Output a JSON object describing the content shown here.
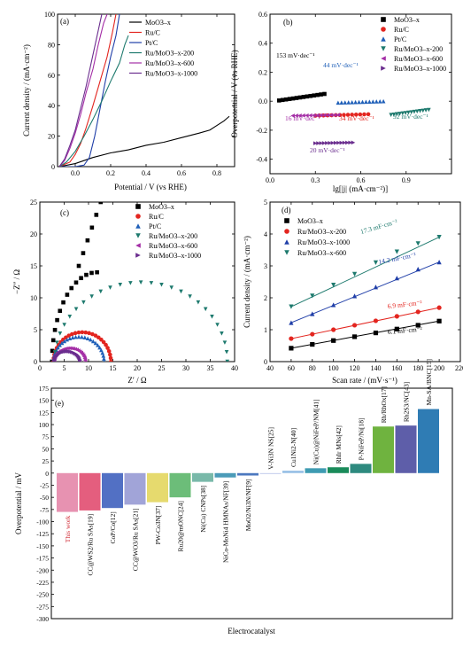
{
  "chart_data": [
    {
      "panel": "(a)",
      "type": "line",
      "xlabel": "Potential / V (vs RHE)",
      "ylabel": "Current density / (mA·cm⁻²)",
      "xlim": [
        -0.1,
        0.9
      ],
      "ylim": [
        0,
        100
      ],
      "xticks": [
        0.0,
        0.2,
        0.4,
        0.6,
        0.8
      ],
      "yticks": [
        0,
        20,
        40,
        60,
        80,
        100
      ],
      "legend_position": "top-right",
      "series": [
        {
          "name": "MoO3-x",
          "color": "#000000",
          "points": [
            [
              -0.09,
              0
            ],
            [
              0.0,
              2
            ],
            [
              0.1,
              6
            ],
            [
              0.2,
              9
            ],
            [
              0.3,
              11
            ],
            [
              0.4,
              14
            ],
            [
              0.5,
              16
            ],
            [
              0.6,
              19
            ],
            [
              0.7,
              22
            ],
            [
              0.76,
              24
            ],
            [
              0.8,
              27
            ],
            [
              0.84,
              30
            ],
            [
              0.87,
              33
            ]
          ]
        },
        {
          "name": "Ru/C",
          "color": "#e3251f",
          "points": [
            [
              -0.09,
              0
            ],
            [
              -0.03,
              3
            ],
            [
              0.0,
              8
            ],
            [
              0.03,
              15
            ],
            [
              0.06,
              25
            ],
            [
              0.1,
              40
            ],
            [
              0.14,
              56
            ],
            [
              0.18,
              72
            ],
            [
              0.21,
              88
            ],
            [
              0.23,
              100
            ]
          ]
        },
        {
          "name": "Pt/C",
          "color": "#1f3ea8",
          "points": [
            [
              -0.09,
              0
            ],
            [
              0.0,
              0
            ],
            [
              0.05,
              1
            ],
            [
              0.08,
              6
            ],
            [
              0.11,
              20
            ],
            [
              0.14,
              38
            ],
            [
              0.17,
              56
            ],
            [
              0.2,
              72
            ],
            [
              0.23,
              86
            ],
            [
              0.25,
              100
            ]
          ]
        },
        {
          "name": "Ru/MoO3-x-200",
          "color": "#1e7a6e",
          "points": [
            [
              -0.09,
              0
            ],
            [
              -0.05,
              3
            ],
            [
              0.0,
              10
            ],
            [
              0.05,
              20
            ],
            [
              0.1,
              31
            ],
            [
              0.15,
              43
            ],
            [
              0.2,
              56
            ],
            [
              0.25,
              68
            ],
            [
              0.28,
              80
            ],
            [
              0.3,
              86
            ]
          ]
        },
        {
          "name": "Ru/MoO3-x-600",
          "color": "#a42ea6",
          "points": [
            [
              -0.09,
              0
            ],
            [
              -0.06,
              4
            ],
            [
              -0.03,
              12
            ],
            [
              0.0,
              22
            ],
            [
              0.03,
              34
            ],
            [
              0.06,
              48
            ],
            [
              0.1,
              64
            ],
            [
              0.13,
              80
            ],
            [
              0.16,
              94
            ],
            [
              0.18,
              100
            ]
          ]
        },
        {
          "name": "Ru/MoO3-x-1000",
          "color": "#6a2d8e",
          "points": [
            [
              -0.09,
              0
            ],
            [
              -0.06,
              5
            ],
            [
              -0.03,
              14
            ],
            [
              0.0,
              24
            ],
            [
              0.03,
              38
            ],
            [
              0.06,
              52
            ],
            [
              0.09,
              68
            ],
            [
              0.12,
              84
            ],
            [
              0.15,
              100
            ]
          ]
        }
      ]
    },
    {
      "panel": "(b)",
      "type": "scatter",
      "xlabel": "lg[|j| (mA·cm⁻²)]",
      "ylabel": "Overpotential / V (vs RHE)",
      "xlim": [
        0,
        1.2
      ],
      "ylim": [
        -0.5,
        0.6
      ],
      "xticks": [
        0.0,
        0.3,
        0.6,
        0.9
      ],
      "yticks": [
        -0.4,
        -0.2,
        0.0,
        0.2,
        0.4,
        0.6
      ],
      "legend_position": "top-right",
      "series": [
        {
          "name": "MoO3-x",
          "color": "#000000",
          "marker": "square",
          "x_range": [
            0.06,
            0.36
          ],
          "y_range": [
            0.005,
            0.05
          ],
          "slope_label": "153 mV·dec⁻¹"
        },
        {
          "name": "Ru/C",
          "color": "#e3251f",
          "marker": "circle",
          "x_range": [
            0.3,
            0.65
          ],
          "y_range": [
            -0.1,
            -0.09
          ],
          "slope_label": "34 mV·dec⁻¹"
        },
        {
          "name": "Pt/C",
          "color": "#1f5fb8",
          "marker": "triangle-up",
          "x_range": [
            0.45,
            0.75
          ],
          "y_range": [
            -0.01,
            0.0
          ],
          "slope_label": "44 mV·dec⁻¹"
        },
        {
          "name": "Ru/MoO3-x-200",
          "color": "#1e7a6e",
          "marker": "triangle-down",
          "x_range": [
            0.8,
            1.05
          ],
          "y_range": [
            -0.095,
            -0.06
          ],
          "slope_label": "92 mV·dec⁻¹"
        },
        {
          "name": "Ru/MoO3-x-600",
          "color": "#a42ea6",
          "marker": "triangle-left",
          "x_range": [
            0.15,
            0.45
          ],
          "y_range": [
            -0.1,
            -0.095
          ],
          "slope_label": "16 mV·dec⁻¹"
        },
        {
          "name": "Ru/MoO3-x-1000",
          "color": "#6a2d8e",
          "marker": "triangle-right",
          "x_range": [
            0.3,
            0.55
          ],
          "y_range": [
            -0.29,
            -0.285
          ],
          "slope_label": "20 mV·dec⁻¹"
        }
      ]
    },
    {
      "panel": "(c)",
      "type": "scatter",
      "xlabel": "Z′ / Ω",
      "ylabel": "−Z″ / Ω",
      "xlim": [
        0,
        40
      ],
      "ylim": [
        0,
        25
      ],
      "xticks": [
        0,
        5,
        10,
        15,
        20,
        25,
        30,
        35,
        40
      ],
      "yticks": [
        0,
        5,
        10,
        15,
        20,
        25
      ],
      "legend_position": "top-right",
      "series": [
        {
          "name": "MoO3-x",
          "color": "#000000",
          "marker": "square",
          "arc": {
            "start": 2.5,
            "end": 21.0,
            "peak": 14.0,
            "to_x": 12.5,
            "to_y": 25.0
          }
        },
        {
          "name": "Ru/C",
          "color": "#e3251f",
          "marker": "circle",
          "arc": {
            "start": 2.8,
            "end": 14.6,
            "peak": 4.6
          }
        },
        {
          "name": "Pt/C",
          "color": "#1f5fb8",
          "marker": "triangle-up",
          "arc": {
            "start": 2.8,
            "end": 13.2,
            "peak": 3.9
          }
        },
        {
          "name": "Ru/MoO3-x-200",
          "color": "#1e7a6e",
          "marker": "triangle-down",
          "arc": {
            "start": 3.0,
            "end": 38.5,
            "peak": 12.4
          }
        },
        {
          "name": "Ru/MoO3-x-600",
          "color": "#a42ea6",
          "marker": "triangle-left",
          "arc": {
            "start": 2.9,
            "end": 9.3,
            "peak": 2.1
          }
        },
        {
          "name": "Ru/MoO3-x-1000",
          "color": "#6a2d8e",
          "marker": "triangle-right",
          "arc": {
            "start": 3.0,
            "end": 8.3,
            "peak": 1.6
          }
        }
      ]
    },
    {
      "panel": "(d)",
      "type": "scatter",
      "xlabel": "Scan rate / (mV·s⁻¹)",
      "ylabel": "Current density / (mA·cm⁻²)",
      "xlim": [
        40,
        220
      ],
      "ylim": [
        0,
        5
      ],
      "xticks": [
        40,
        60,
        80,
        100,
        120,
        140,
        160,
        180,
        200,
        220
      ],
      "yticks": [
        0,
        1,
        2,
        3,
        4,
        5
      ],
      "legend_position": "top-left",
      "x": [
        60,
        80,
        100,
        120,
        140,
        160,
        180,
        200
      ],
      "series": [
        {
          "name": "MoO3-x",
          "color": "#000000",
          "marker": "square",
          "values": [
            0.42,
            0.54,
            0.66,
            0.78,
            0.9,
            1.02,
            1.14,
            1.27
          ],
          "slope_label": "6.1 mF·cm⁻²"
        },
        {
          "name": "Ru/MoO3-x-200",
          "color": "#e3251f",
          "marker": "circle",
          "values": [
            0.72,
            0.86,
            1.0,
            1.14,
            1.28,
            1.42,
            1.56,
            1.69
          ],
          "slope_label": "6.9 mF·cm⁻²"
        },
        {
          "name": "Ru/MoO3-x-1000",
          "color": "#1f3ea8",
          "marker": "triangle-up",
          "values": [
            1.22,
            1.5,
            1.78,
            2.06,
            2.34,
            2.62,
            2.9,
            3.12
          ],
          "slope_label": "14.2 mF·cm⁻²"
        },
        {
          "name": "Ru/MoO3-x-600",
          "color": "#1e7a6e",
          "marker": "triangle-down",
          "values": [
            1.72,
            2.06,
            2.4,
            2.74,
            3.1,
            3.44,
            3.7,
            3.9
          ],
          "slope_label": "17.3 mF·cm⁻²"
        }
      ]
    },
    {
      "panel": "(e)",
      "type": "bar",
      "xlabel": "Electrocatalyst",
      "ylabel": "Overpotential / mV",
      "ylim": [
        -300,
        175
      ],
      "yticks": [
        -300,
        -275,
        -250,
        -225,
        -200,
        -175,
        -150,
        -125,
        -100,
        -75,
        -50,
        -25,
        0,
        25,
        50,
        75,
        100,
        125,
        150,
        175
      ],
      "categories": [
        "This work",
        "CC@WS2/Ru SAs[19]",
        "CoP/Co[12]",
        "CC@WO3/Ru SAs[21]",
        "PW-Co3N[37]",
        "Ru20@mONC[24]",
        "Ni(Cu) CNPs[38]",
        "NiCo-MoNi4 HMNAs/NF[39]",
        "MoO2/Ni3N/NF[9]",
        "V-Ni3N NS[25]",
        "Cu1Ni2-N[40]",
        "Ni(Cu)@NiFeP/NM[41]",
        "RhIr MNs[42]",
        "P-NiFeP/Ni[18]",
        "Rh/RhOx[17]",
        "Rh2S3/NC[43]",
        "Mn-SA/BNC[15]"
      ],
      "values": [
        -80,
        -77,
        -72,
        -65,
        -60,
        -50,
        -18,
        -9,
        -5,
        0,
        5,
        10,
        12,
        19,
        96,
        98,
        132
      ],
      "colors": [
        "#e792b1",
        "#e45e7e",
        "#5270c4",
        "#a1a4d8",
        "#e6da6e",
        "#6cbd79",
        "#79b9a9",
        "#4b9bb8",
        "#4c78bf",
        "#ccd4f0",
        "#9ac1e6",
        "#3e9bb2",
        "#1a8b5a",
        "#2e8a7f",
        "#6fb33f",
        "#5e5ea9",
        "#2f7cb4"
      ],
      "highlight": "This work"
    }
  ],
  "labels": {
    "a": {
      "panel": "(a)",
      "ylabel": "Current density / (mA·cm⁻²)",
      "xlabel": "Potential / V (vs RHE)",
      "legend": [
        "MoO3–x",
        "Ru/C",
        "Pt/C",
        "Ru/MoO3–x-200",
        "Ru/MoO3–x-600",
        "Ru/MoO3–x-1000"
      ]
    },
    "b": {
      "panel": "(b)",
      "ylabel": "Overpotential / V (vs RHE)",
      "xlabel": "lg[|j| (mA·cm⁻²)]",
      "legend": [
        "MoO3–x",
        "Ru/C",
        "Pt/C",
        "Ru/MoO3–x-200",
        "Ru/MoO3–x-600",
        "Ru/MoO3–x-1000"
      ],
      "slopes": [
        "153 mV·dec⁻¹",
        "44 mV·dec⁻¹",
        "16 mV·dec⁻¹",
        "34 mV·dec⁻¹",
        "92 mV·dec⁻¹",
        "20 mV·dec⁻¹"
      ]
    },
    "c": {
      "panel": "(c)",
      "ylabel": "−Z″ / Ω",
      "xlabel": "Z′ / Ω",
      "legend": [
        "MoO3–x",
        "Ru/C",
        "Pt/C",
        "Ru/MoO3–x-200",
        "Ru/MoO3–x-600",
        "Ru/MoO3–x-1000"
      ]
    },
    "d": {
      "panel": "(d)",
      "ylabel": "Current density / (mA·cm⁻²)",
      "xlabel": "Scan rate / (mV·s⁻¹)",
      "legend": [
        "MoO3–x",
        "Ru/MoO3–x-200",
        "Ru/MoO3–x-1000",
        "Ru/MoO3–x-600"
      ],
      "slopes": [
        "17.3 mF·cm⁻²",
        "14.2 mF·cm⁻²",
        "6.9 mF·cm⁻²",
        "6.1 mF·cm⁻²"
      ]
    },
    "e": {
      "panel": "(e)",
      "ylabel": "Overpotential / mV",
      "xlabel": "Electrocatalyst"
    }
  }
}
